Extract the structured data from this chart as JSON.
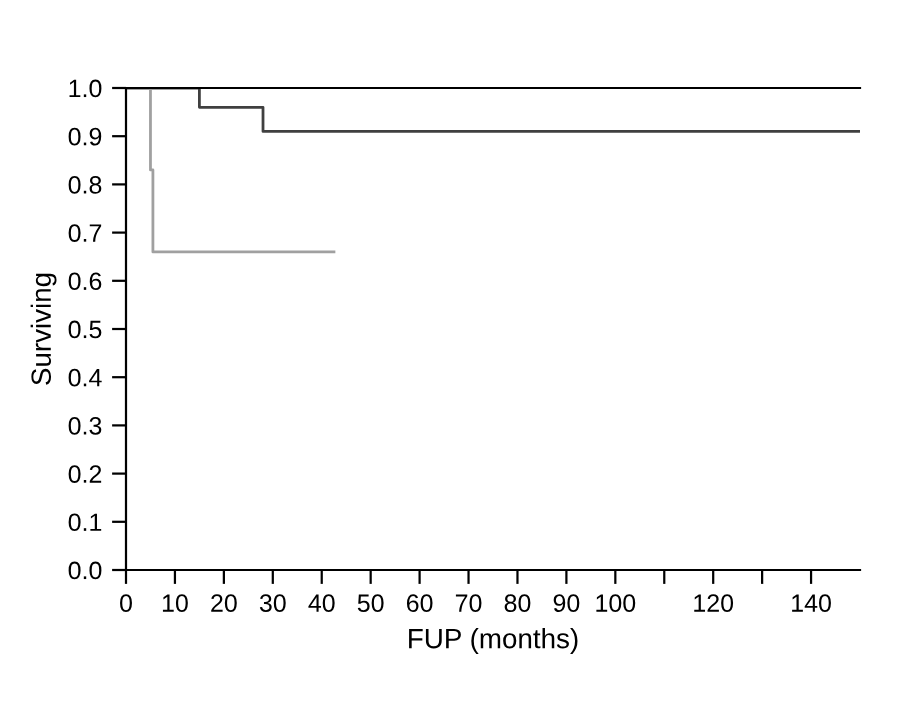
{
  "chart_data": {
    "type": "step",
    "xlabel": "FUP (months)",
    "ylabel": "Surviving",
    "series": [
      {
        "color": "#404040",
        "x": [
          0,
          15,
          28,
          150
        ],
        "values": [
          1.0,
          0.96,
          0.91,
          0.91
        ]
      },
      {
        "color": "#a0a0a0",
        "x": [
          0,
          5,
          5.5,
          42.5
        ],
        "values": [
          1.0,
          0.83,
          0.66,
          0.66
        ]
      }
    ],
    "xlim": [
      0,
      150
    ],
    "ylim": [
      0,
      1.0
    ],
    "xticks": [
      0,
      10,
      20,
      30,
      40,
      50,
      60,
      70,
      80,
      90,
      100,
      {
        "value": 110,
        "label": null
      },
      120,
      {
        "value": 130,
        "label": null
      },
      140
    ],
    "yticks": [
      {
        "value": 0,
        "label": "0.0"
      },
      {
        "value": 0.1,
        "label": "0.1"
      },
      {
        "value": 0.2,
        "label": "0.2"
      },
      {
        "value": 0.3,
        "label": "0.3"
      },
      {
        "value": 0.4,
        "label": "0.4"
      },
      {
        "value": 0.5,
        "label": "0.5"
      },
      {
        "value": 0.6,
        "label": "0.6"
      },
      {
        "value": 0.7,
        "label": "0.7"
      },
      {
        "value": 0.8,
        "label": "0.8"
      },
      {
        "value": 0.9,
        "label": "0.9"
      },
      {
        "value": 1.0,
        "label": "1.0"
      }
    ],
    "grid": false,
    "legend": false
  }
}
